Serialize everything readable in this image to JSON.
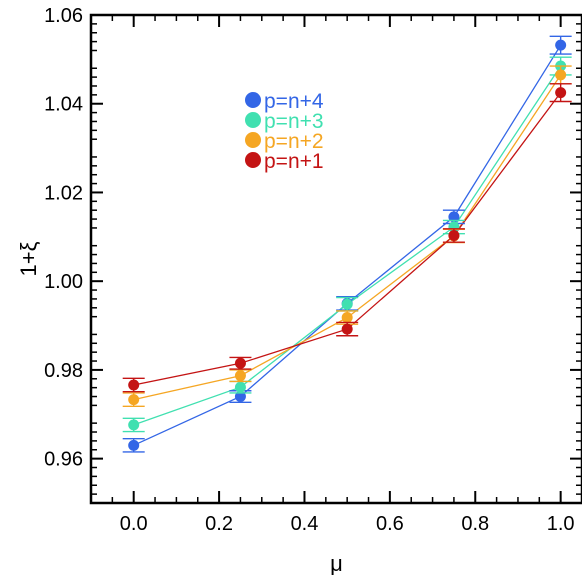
{
  "chart_data": {
    "type": "scatter",
    "xlabel": "μ",
    "ylabel": "1+ξ",
    "xlim": [
      -0.1,
      1.05
    ],
    "ylim": [
      0.95,
      1.06
    ],
    "x_ticks": [
      "0.0",
      "0.2",
      "0.4",
      "0.6",
      "0.8",
      "1.0"
    ],
    "y_ticks": [
      "0.96",
      "0.98",
      "1.00",
      "1.02",
      "1.04",
      "1.06"
    ],
    "x": [
      0.0,
      0.25,
      0.5,
      0.75,
      1.0
    ],
    "lines_connect_points": true,
    "error_bars": true,
    "legend_position": "upper-center",
    "series": [
      {
        "name": "p=n+4",
        "color": "#3366e6",
        "values": [
          0.963,
          0.974,
          0.995,
          1.0145,
          1.0532
        ],
        "errors": [
          0.0015,
          0.0013,
          0.0015,
          0.0015,
          0.002
        ]
      },
      {
        "name": "p=n+3",
        "color": "#40e0b0",
        "values": [
          0.9676,
          0.9761,
          0.9948,
          1.0122,
          1.0485
        ],
        "errors": [
          0.0015,
          0.0013,
          0.0015,
          0.0015,
          0.002
        ]
      },
      {
        "name": "p=n+2",
        "color": "#f5a623",
        "values": [
          0.9733,
          0.9787,
          0.9918,
          1.0102,
          1.0465
        ],
        "errors": [
          0.0015,
          0.0013,
          0.0015,
          0.0015,
          0.002
        ]
      },
      {
        "name": "p=n+1",
        "color": "#c41414",
        "values": [
          0.9766,
          0.9815,
          0.9892,
          1.0103,
          1.0425
        ],
        "errors": [
          0.0015,
          0.0013,
          0.0015,
          0.0015,
          0.002
        ]
      }
    ]
  }
}
